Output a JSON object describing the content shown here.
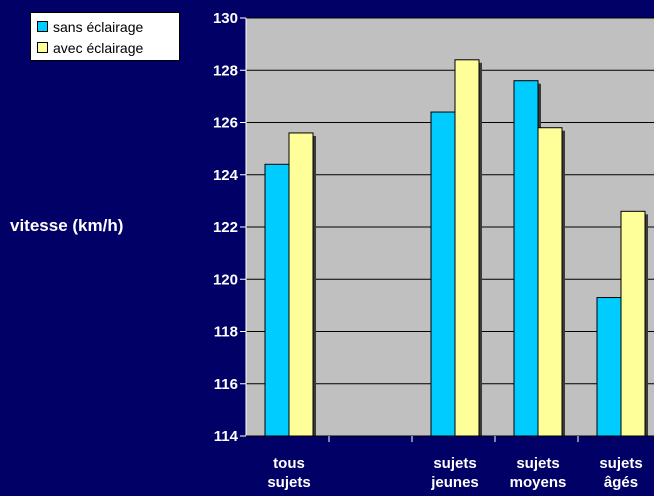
{
  "chart_data": {
    "type": "bar",
    "categories": [
      "tous sujets",
      "",
      "sujets jeunes",
      "sujets moyens",
      "sujets âgés"
    ],
    "series": [
      {
        "name": "sans éclairage",
        "color": "#00CCFF",
        "values": [
          124.4,
          null,
          126.4,
          127.6,
          119.3
        ]
      },
      {
        "name": "avec éclairage",
        "color": "#FFFF99",
        "values": [
          125.6,
          null,
          128.4,
          125.8,
          122.6
        ]
      }
    ],
    "ylabel": "vitesse (km/h)",
    "ylim": [
      114,
      130
    ],
    "yticks": [
      114,
      116,
      118,
      120,
      122,
      124,
      126,
      128,
      130
    ],
    "grid": true,
    "legend": "top-left"
  },
  "colors": {
    "background": "#000066",
    "plot_area": "#C0C0C0",
    "text": "#FFFFFF"
  }
}
